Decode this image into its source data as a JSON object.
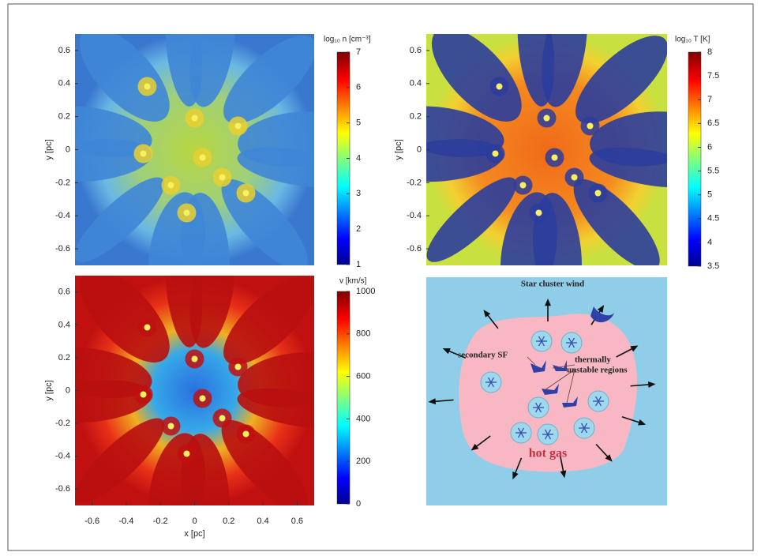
{
  "figure": {
    "xlim": [
      -0.7,
      0.7
    ],
    "ylim": [
      -0.7,
      0.7
    ],
    "xticks": [
      -0.6,
      -0.4,
      -0.2,
      0,
      0.2,
      0.4,
      0.6
    ],
    "yticks": [
      0.6,
      0.4,
      0.2,
      0,
      -0.2,
      -0.4,
      -0.6
    ],
    "x_label": "x [pc]",
    "y_label": "y [pc]",
    "panels": [
      {
        "colorbar_label": "log₁₀ n [cm⁻³]",
        "clim": [
          1,
          7
        ],
        "cticks": [
          1,
          2,
          3,
          4,
          5,
          6,
          7
        ]
      },
      {
        "colorbar_label": "log₁₀ T [K]",
        "clim": [
          3.5,
          8
        ],
        "cticks": [
          3.5,
          4,
          4.5,
          5,
          5.5,
          6,
          6.5,
          7,
          7.5,
          8
        ]
      },
      {
        "colorbar_label": "v [km/s]",
        "clim": [
          0,
          1000
        ],
        "cticks": [
          0,
          200,
          400,
          600,
          800,
          1000
        ]
      }
    ],
    "diagram": {
      "title": "Star cluster wind",
      "secondary": "secondary SF",
      "thermal_1": "thermally",
      "thermal_2": "unstable regions",
      "hot": "hot gas"
    }
  }
}
